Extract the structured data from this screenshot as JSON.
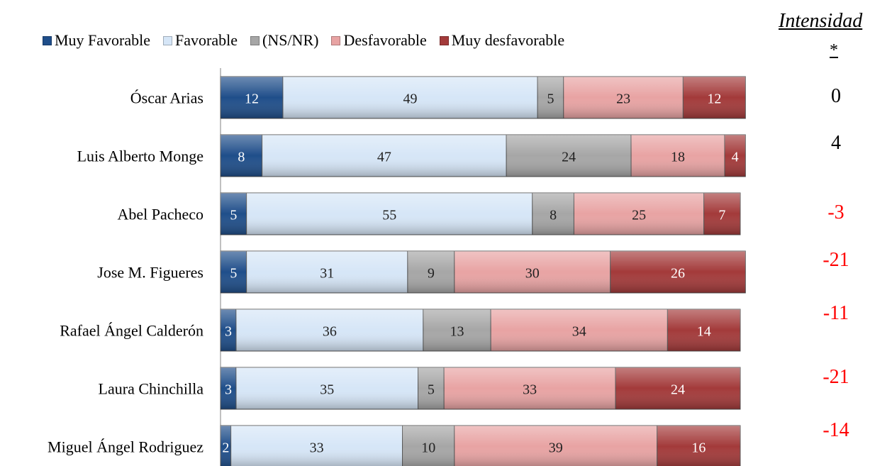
{
  "chart_data": {
    "type": "bar",
    "orientation": "horizontal",
    "stacked": true,
    "xlim": [
      0,
      100
    ],
    "categories": [
      "Óscar Arias",
      "Luis Alberto Monge",
      "Abel Pacheco",
      "Jose M. Figueres",
      "Rafael Ángel Calderón",
      "Laura Chinchilla",
      "Miguel Ángel Rodriguez"
    ],
    "series": [
      {
        "name": "Muy Favorable",
        "color": "#1f4e8a",
        "label_color": "#ffffff",
        "values": [
          12,
          8,
          5,
          5,
          3,
          3,
          2
        ]
      },
      {
        "name": "Favorable",
        "color": "#d6e6f7",
        "label_color": "#222222",
        "values": [
          49,
          47,
          55,
          31,
          36,
          35,
          33
        ]
      },
      {
        "name": "(NS/NR)",
        "color": "#a6a6a6",
        "label_color": "#222222",
        "values": [
          5,
          24,
          8,
          9,
          13,
          5,
          10
        ]
      },
      {
        "name": "Desfavorable",
        "color": "#e8a3a3",
        "label_color": "#222222",
        "values": [
          23,
          18,
          25,
          30,
          34,
          33,
          39
        ]
      },
      {
        "name": "Muy desfavorable",
        "color": "#a33a3a",
        "label_color": "#ffffff",
        "values": [
          12,
          4,
          7,
          26,
          14,
          24,
          16
        ]
      }
    ],
    "legend_position": "top",
    "grid": false,
    "intensidad": {
      "title": "Intensidad",
      "subtitle": "*",
      "values": [
        "0",
        "4",
        "-3",
        "-21",
        "-11",
        "-21",
        "-14"
      ],
      "colors": [
        "#000000",
        "#000000",
        "#ff0000",
        "#ff0000",
        "#ff0000",
        "#ff0000",
        "#ff0000"
      ]
    }
  }
}
